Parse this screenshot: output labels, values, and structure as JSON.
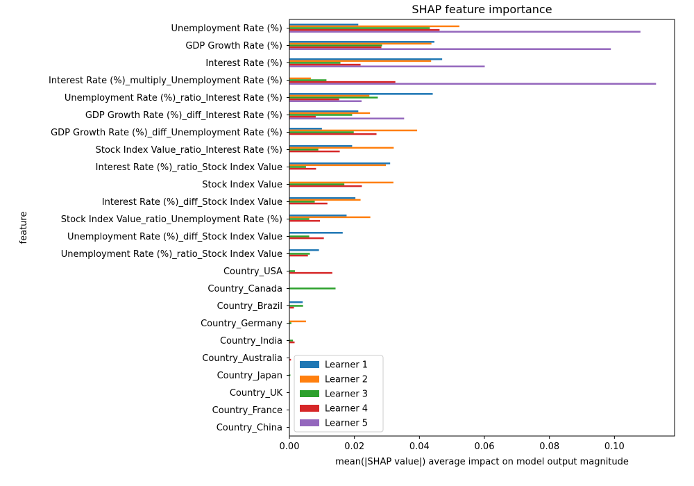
{
  "chart_data": {
    "type": "bar",
    "orientation": "horizontal",
    "title": "SHAP feature importance",
    "xlabel": "mean(|SHAP value|) average impact on model output magnitude",
    "ylabel": "feature",
    "xlim": [
      0,
      0.1185
    ],
    "xticks": [
      "0.00",
      "0.02",
      "0.04",
      "0.06",
      "0.08",
      "0.10"
    ],
    "xtick_values": [
      0,
      0.02,
      0.04,
      0.06,
      0.08,
      0.1
    ],
    "legend_position": "lower-left",
    "grid": false,
    "categories": [
      "Unemployment Rate (%)",
      "GDP Growth Rate (%)",
      "Interest Rate (%)",
      "Interest Rate (%)_multiply_Unemployment Rate (%)",
      "Unemployment Rate (%)_ratio_Interest Rate (%)",
      "GDP Growth Rate (%)_diff_Interest Rate (%)",
      "GDP Growth Rate (%)_diff_Unemployment Rate (%)",
      "Stock Index Value_ratio_Interest Rate (%)",
      "Interest Rate (%)_ratio_Stock Index Value",
      "Stock Index Value",
      "Interest Rate (%)_diff_Stock Index Value",
      "Stock Index Value_ratio_Unemployment Rate (%)",
      "Unemployment Rate (%)_diff_Stock Index Value",
      "Unemployment Rate (%)_ratio_Stock Index Value",
      "Country_USA",
      "Country_Canada",
      "Country_Brazil",
      "Country_Germany",
      "Country_India",
      "Country_Australia",
      "Country_Japan",
      "Country_UK",
      "Country_France",
      "Country_China"
    ],
    "series": [
      {
        "name": "Learner 1",
        "color": "#1f77b4",
        "values": [
          0.0212,
          0.0446,
          0.047,
          0.0,
          0.0441,
          0.0212,
          0.01,
          0.0193,
          0.031,
          0.0,
          0.0203,
          0.0176,
          0.0164,
          0.0091,
          0.0,
          0.0,
          0.0041,
          0.0,
          0.0,
          0.0,
          0.0,
          0.0,
          0.0,
          0.0
        ]
      },
      {
        "name": "Learner 2",
        "color": "#ff7f0e",
        "values": [
          0.0523,
          0.0437,
          0.0436,
          0.0066,
          0.0246,
          0.0248,
          0.0393,
          0.0321,
          0.0297,
          0.032,
          0.0219,
          0.0249,
          0.0,
          0.0,
          0.0,
          0.0,
          0.0,
          0.0051,
          0.0,
          0.0,
          0.0,
          0.0,
          0.0,
          0.0
        ]
      },
      {
        "name": "Learner 3",
        "color": "#2ca02c",
        "values": [
          0.0432,
          0.0285,
          0.0157,
          0.0114,
          0.0272,
          0.0193,
          0.0198,
          0.0089,
          0.0051,
          0.0169,
          0.0078,
          0.0061,
          0.0061,
          0.0063,
          0.0017,
          0.0142,
          0.0042,
          0.0006,
          0.0011,
          0.0,
          0.0003,
          0.0,
          0.0,
          0.0
        ]
      },
      {
        "name": "Learner 4",
        "color": "#d62728",
        "values": [
          0.0462,
          0.0283,
          0.0219,
          0.0326,
          0.0153,
          0.0081,
          0.0268,
          0.0155,
          0.0082,
          0.0223,
          0.0117,
          0.0094,
          0.0106,
          0.0057,
          0.0132,
          0.0,
          0.0014,
          0.0,
          0.0016,
          0.0005,
          0.0,
          0.0,
          0.0,
          0.0
        ]
      },
      {
        "name": "Learner 5",
        "color": "#9467bd",
        "values": [
          0.108,
          0.0989,
          0.0601,
          0.1128,
          0.0222,
          0.0353,
          0.0,
          0.0,
          0.0,
          0.0,
          0.0,
          0.0,
          0.0,
          0.0,
          0.0,
          0.0,
          0.0,
          0.0,
          0.0,
          0.0,
          0.0,
          0.0,
          0.0,
          0.0
        ]
      }
    ]
  }
}
